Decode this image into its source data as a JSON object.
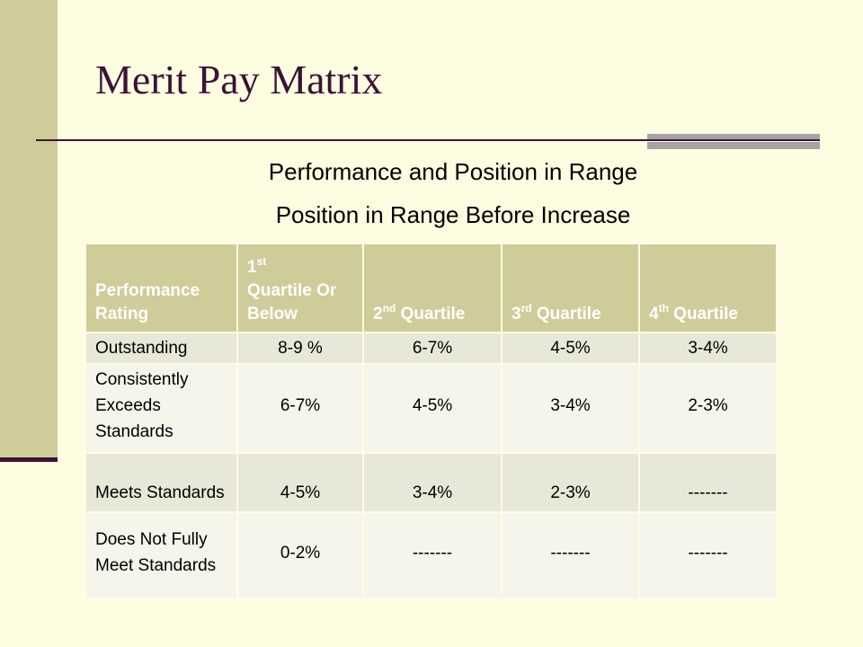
{
  "slide": {
    "title": "Merit Pay Matrix",
    "subtitle_1": "Performance and Position in Range",
    "subtitle_2": "Position in Range Before Increase",
    "colors": {
      "background": "#fdfde1",
      "accent": "#cfcc9a",
      "title": "#3d1236",
      "rule_accent": "#a4a4a4"
    }
  },
  "table": {
    "headers": [
      {
        "pre": "",
        "sup": "",
        "post": "Performance Rating"
      },
      {
        "pre": "1",
        "sup": "st",
        "post": "Quartile Or Below"
      },
      {
        "pre": "2",
        "sup": "nd",
        "post": " Quartile"
      },
      {
        "pre": "3",
        "sup": "rd",
        "post": " Quartile"
      },
      {
        "pre": "4",
        "sup": "th",
        "post": " Quartile"
      }
    ],
    "rows": [
      {
        "rating": "Outstanding",
        "q1": "8-9 %",
        "q2": "6-7%",
        "q3": "4-5%",
        "q4": "3-4%"
      },
      {
        "rating": "Consistently Exceeds Standards",
        "q1": "6-7%",
        "q2": "4-5%",
        "q3": "3-4%",
        "q4": "2-3%"
      },
      {
        "rating": "Meets Standards",
        "q1": "4-5%",
        "q2": "3-4%",
        "q3": "2-3%",
        "q4": "-------"
      },
      {
        "rating": "Does Not Fully Meet Standards",
        "q1": "0-2%",
        "q2": "-------",
        "q3": "-------",
        "q4": "-------"
      }
    ]
  }
}
